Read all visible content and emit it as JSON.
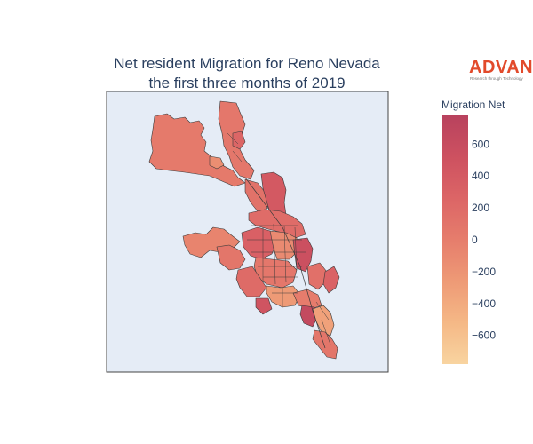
{
  "title": {
    "line1": "Net resident Migration for Reno Nevada",
    "line2": "the first three months of 2019"
  },
  "logo": {
    "word": "ADVAN",
    "tagline": "Research through Technology"
  },
  "colorbar": {
    "title": "Migration Net",
    "range": [
      -780,
      780
    ],
    "ticks": [
      600,
      400,
      200,
      0,
      -200,
      -400,
      -600
    ],
    "tick_labels": [
      "600",
      "400",
      "200",
      "0",
      "−200",
      "−400",
      "−600"
    ],
    "colorscale": [
      "#f8d4a0",
      "#f5b886",
      "#ee9a76",
      "#e67d6c",
      "#dc6566",
      "#cd5160",
      "#b8425e"
    ]
  },
  "map": {
    "background": "#e5ecf6",
    "outline_color": "#3a3a3a",
    "regions": [
      {
        "id": "north-west-arm",
        "value": 30
      },
      {
        "id": "north-east-arm",
        "value": 60
      },
      {
        "id": "north-pocket",
        "value": -150
      },
      {
        "id": "north-east-cell",
        "value": 250
      },
      {
        "id": "lemmon-west",
        "value": 120
      },
      {
        "id": "lemmon-east",
        "value": 420
      },
      {
        "id": "northwest-lobe",
        "value": -60
      },
      {
        "id": "west-lobe",
        "value": 80
      },
      {
        "id": "central-north-strip",
        "value": 180
      },
      {
        "id": "central-core-a",
        "value": 320
      },
      {
        "id": "central-core-b",
        "value": -120
      },
      {
        "id": "central-core-c",
        "value": 540
      },
      {
        "id": "central-core-d",
        "value": 60
      },
      {
        "id": "central-east",
        "value": 140
      },
      {
        "id": "east-spur",
        "value": 300
      },
      {
        "id": "south-west-lobe",
        "value": 200
      },
      {
        "id": "south-central",
        "value": -260
      },
      {
        "id": "southwest-pocket",
        "value": 480
      },
      {
        "id": "south-strip-a",
        "value": 10
      },
      {
        "id": "south-strip-b",
        "value": 650
      },
      {
        "id": "south-strip-c",
        "value": -320
      },
      {
        "id": "south-strip-d",
        "value": 80
      }
    ]
  }
}
